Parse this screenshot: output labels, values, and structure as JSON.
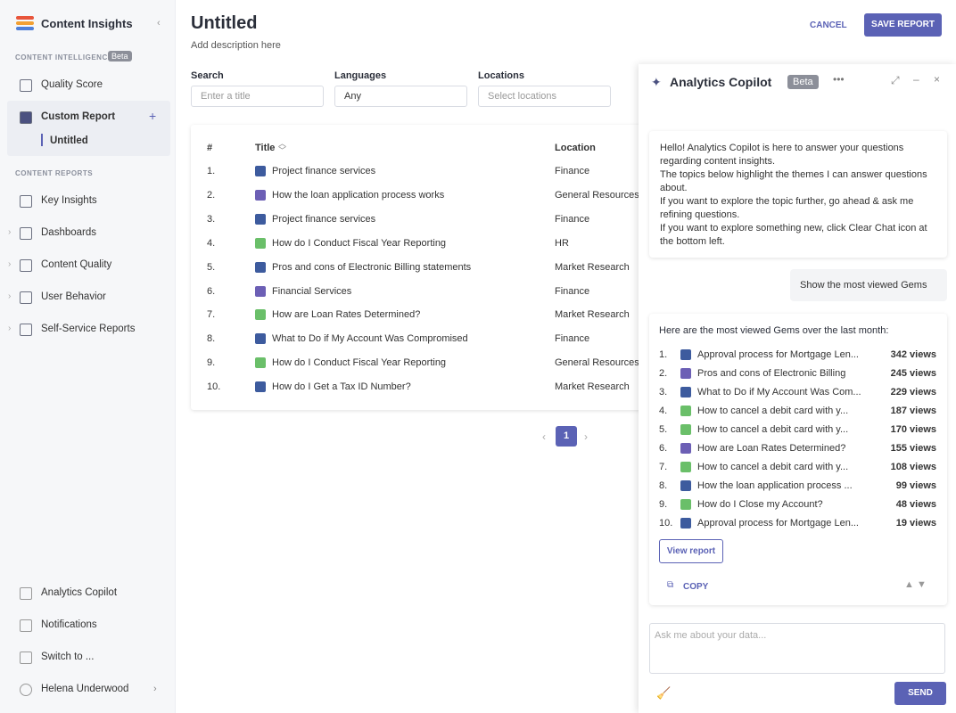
{
  "sidebar": {
    "brand": "Content Insights",
    "section_intelligence": "CONTENT INTELLIGENCE",
    "beta": "Beta",
    "intelligence_items": [
      "Quality Score",
      "Custom Report"
    ],
    "sub_item": "Untitled",
    "section_reports": "CONTENT REPORTS",
    "report_items": [
      "Key Insights",
      "Dashboards",
      "Content Quality",
      "User Behavior",
      "Self-Service Reports"
    ],
    "bottom_items": [
      "Analytics Copilot",
      "Notifications",
      "Switch to ...",
      "Helena Underwood"
    ]
  },
  "header": {
    "title": "Untitled",
    "description": "Add description here",
    "cancel": "CANCEL",
    "save": "SAVE REPORT"
  },
  "filters": {
    "search_label": "Search",
    "search_placeholder": "Enter a title",
    "languages_label": "Languages",
    "languages_value": "Any",
    "locations_label": "Locations",
    "locations_placeholder": "Select locations"
  },
  "table": {
    "columns": [
      "#",
      "Title",
      "Location"
    ],
    "rows": [
      [
        "1.",
        "Project finance services",
        "Finance",
        "doc"
      ],
      [
        "2.",
        "How the loan application process works",
        "General Resources",
        "group"
      ],
      [
        "3.",
        "Project finance services",
        "Finance",
        "doc"
      ],
      [
        "4.",
        "How do I Conduct Fiscal Year Reporting",
        "HR",
        "green"
      ],
      [
        "5.",
        "Pros and cons of Electronic Billing statements",
        "Market Research",
        "doc"
      ],
      [
        "6.",
        "Financial Services",
        "Finance",
        "group"
      ],
      [
        "7.",
        "How are Loan Rates Determined?",
        "Market Research",
        "green"
      ],
      [
        "8.",
        "What to Do if My Account Was Compromised",
        "Finance",
        "doc"
      ],
      [
        "9.",
        "How do I Conduct Fiscal Year Reporting",
        "General Resources",
        "green"
      ],
      [
        "10.",
        "How do I Get a Tax ID Number?",
        "Market Research",
        "doc"
      ]
    ]
  },
  "pagination": {
    "current": "1"
  },
  "copilot": {
    "title": "Analytics Copilot",
    "beta": "Beta",
    "intro": [
      "Hello! Analytics Copilot is here to answer your questions regarding content insights.",
      "The topics below highlight the themes I can answer questions about.",
      "If you want to explore the topic further, go ahead & ask me refining questions.",
      "If you want to explore something new, click Clear Chat icon at the bottom left."
    ],
    "user_message": "Show the most viewed Gems",
    "answer_intro": "Here are the most viewed Gems over the last month:",
    "list": [
      [
        "1.",
        "Approval process for Mortgage Len...",
        "342 views",
        "doc"
      ],
      [
        "2.",
        "Pros and cons of Electronic Billing",
        "245 views",
        "group"
      ],
      [
        "3.",
        "What to Do if My Account Was Com...",
        "229 views",
        "doc"
      ],
      [
        "4.",
        "How to cancel a debit card with y...",
        "187 views",
        "green"
      ],
      [
        "5.",
        "How to cancel a debit card with y...",
        "170 views",
        "green"
      ],
      [
        "6.",
        "How are Loan Rates Determined?",
        "155 views",
        "group"
      ],
      [
        "7.",
        "How to cancel a debit card with y...",
        "108 views",
        "green"
      ],
      [
        "8.",
        "How the loan application process ...",
        "99 views",
        "doc"
      ],
      [
        "9.",
        "How do I Close my Account?",
        "48 views",
        "green"
      ],
      [
        "10.",
        "Approval process for Mortgage Len...",
        "19 views",
        "doc"
      ]
    ],
    "view_report": "View report",
    "copy": "COPY",
    "input_placeholder": "Ask me about your data...",
    "send": "SEND"
  }
}
